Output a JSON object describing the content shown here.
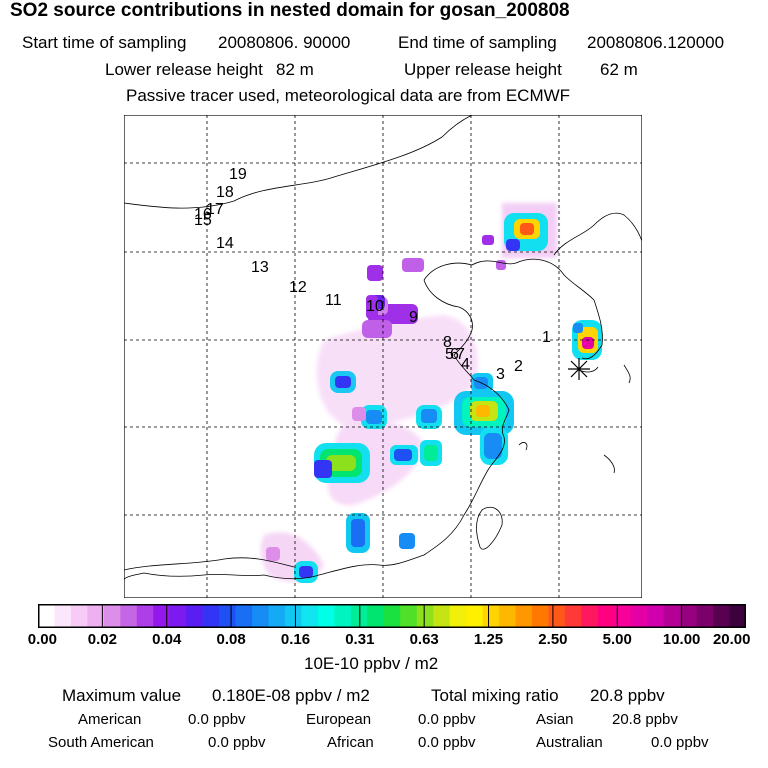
{
  "header": {
    "title": "SO2 source contributions in nested domain for gosan_200808",
    "start_label": "Start time of sampling",
    "start_value": "20080806. 90000",
    "end_label": "End time of sampling",
    "end_value": "20080806.120000",
    "lower_label": "Lower release height",
    "lower_value": "82 m",
    "upper_label": "Upper release height",
    "upper_value": "62 m",
    "note": "Passive tracer used, meteorological data are from ECMWF"
  },
  "map": {
    "markers": [
      "19",
      "18",
      "17",
      "16",
      "15",
      "14",
      "13",
      "12",
      "11",
      "10",
      "9",
      "8",
      "5",
      "6",
      "7",
      "4",
      "3",
      "2",
      "1"
    ],
    "receptor_symbol": "asterisk",
    "grid_dashed": true
  },
  "colorbar": {
    "unit": "10E-10 ppbv / m2",
    "tick_labels": [
      "0.00",
      "0.02",
      "0.04",
      "0.08",
      "0.16",
      "0.31",
      "0.63",
      "1.25",
      "2.50",
      "5.00",
      "10.00",
      "20.00"
    ],
    "colors": [
      "#ffffff",
      "#fbe6fb",
      "#f6ccf6",
      "#eeb0f0",
      "#dc8ee8",
      "#c566e6",
      "#ad3ee8",
      "#9418ec",
      "#7c1af0",
      "#5a1ef2",
      "#3434f4",
      "#1e50f4",
      "#1a6ef4",
      "#168cf4",
      "#14aaf4",
      "#12c8f2",
      "#10e6f0",
      "#00ffe6",
      "#00f4c0",
      "#00ec96",
      "#00e470",
      "#1ae040",
      "#50e02a",
      "#8ce01c",
      "#c4e414",
      "#f0f00a",
      "#fff000",
      "#ffd400",
      "#ffb800",
      "#ff9800",
      "#ff7800",
      "#ff5818",
      "#ff3838",
      "#ff1860",
      "#ff0080",
      "#f8009a",
      "#e400a4",
      "#d000ac",
      "#b40094",
      "#980080",
      "#7c006a",
      "#5a0050",
      "#3c003c"
    ]
  },
  "footer": {
    "max_label": "Maximum value",
    "max_value": "0.180E-08 ppbv / m2",
    "total_label": "Total mixing ratio",
    "total_value": "20.8 ppbv",
    "american_label": "American",
    "american_value": "0.0 ppbv",
    "european_label": "European",
    "european_value": "0.0 ppbv",
    "asian_label": "Asian",
    "asian_value": "20.8 ppbv",
    "south_american_label": "South American",
    "south_american_value": "0.0 ppbv",
    "african_label": "African",
    "african_value": "0.0 ppbv",
    "australian_label": "Australian",
    "australian_value": "0.0 ppbv"
  }
}
